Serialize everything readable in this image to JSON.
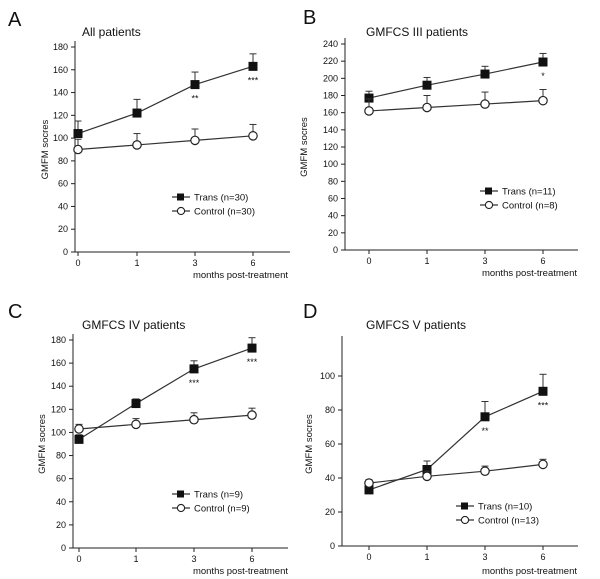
{
  "chart_data": [
    {
      "type": "line",
      "panel_letter": "A",
      "title": "All patients",
      "ylabel": "GMFM socres",
      "xlabel": "months post-treatment",
      "categories": [
        "0",
        "1",
        "3",
        "6"
      ],
      "ylim": [
        0,
        180
      ],
      "yticks": [
        0,
        20,
        40,
        60,
        80,
        100,
        120,
        140,
        160,
        180
      ],
      "grid": false,
      "legend_position": "bottom-right",
      "series": [
        {
          "name": "Trans (n=30)",
          "marker": "filled-square",
          "values": [
            104,
            122,
            147,
            163
          ],
          "errors": [
            11,
            12,
            11,
            11
          ]
        },
        {
          "name": "Control (n=30)",
          "marker": "open-circle",
          "values": [
            90,
            94,
            98,
            102
          ],
          "errors": [
            9,
            10,
            10,
            10
          ]
        }
      ],
      "annotations": [
        {
          "category": "3",
          "text": "**"
        },
        {
          "category": "6",
          "text": "***"
        }
      ]
    },
    {
      "type": "line",
      "panel_letter": "B",
      "title": "GMFCS III patients",
      "ylabel": "GMFM socres",
      "xlabel": "months post-treatment",
      "categories": [
        "0",
        "1",
        "3",
        "6"
      ],
      "ylim": [
        0,
        240
      ],
      "yticks": [
        0,
        20,
        40,
        60,
        80,
        100,
        120,
        140,
        160,
        180,
        200,
        220,
        240
      ],
      "grid": false,
      "legend_position": "bottom-right",
      "series": [
        {
          "name": "Trans (n=11)",
          "marker": "filled-square",
          "values": [
            177,
            192,
            205,
            219
          ],
          "errors": [
            8,
            9,
            9,
            10
          ]
        },
        {
          "name": "Control (n=8)",
          "marker": "open-circle",
          "values": [
            162,
            166,
            170,
            174
          ],
          "errors": [
            14,
            14,
            14,
            13
          ]
        }
      ],
      "annotations": [
        {
          "category": "6",
          "text": "*"
        }
      ]
    },
    {
      "type": "line",
      "panel_letter": "C",
      "title": "GMFCS IV patients",
      "ylabel": "GMFM socres",
      "xlabel": "months post-treatment",
      "categories": [
        "0",
        "1",
        "3",
        "6"
      ],
      "ylim": [
        0,
        180
      ],
      "yticks": [
        0,
        20,
        40,
        60,
        80,
        100,
        120,
        140,
        160,
        180
      ],
      "grid": false,
      "legend_position": "bottom-right",
      "series": [
        {
          "name": "Trans (n=9)",
          "marker": "filled-square",
          "values": [
            94,
            125,
            155,
            173
          ],
          "errors": [
            4,
            4,
            7,
            9
          ]
        },
        {
          "name": "Control (n=9)",
          "marker": "open-circle",
          "values": [
            103,
            107,
            111,
            115
          ],
          "errors": [
            4,
            5,
            6,
            6
          ]
        }
      ],
      "annotations": [
        {
          "category": "3",
          "text": "***"
        },
        {
          "category": "6",
          "text": "***"
        }
      ]
    },
    {
      "type": "line",
      "panel_letter": "D",
      "title": "GMFCS V patients",
      "ylabel": "GMFM socres",
      "xlabel": "months post-treatment",
      "categories": [
        "0",
        "1",
        "3",
        "6"
      ],
      "ylim": [
        0,
        120
      ],
      "yticks": [
        0,
        20,
        40,
        60,
        80,
        100
      ],
      "grid": false,
      "legend_position": "bottom-right",
      "series": [
        {
          "name": "Trans (n=10)",
          "marker": "filled-square",
          "values": [
            33,
            45,
            76,
            91
          ],
          "errors": [
            2,
            5,
            9,
            10
          ]
        },
        {
          "name": "Control (n=13)",
          "marker": "open-circle",
          "values": [
            37,
            41,
            44,
            48
          ],
          "errors": [
            2,
            3,
            3,
            3
          ]
        }
      ],
      "annotations": [
        {
          "category": "3",
          "text": "**"
        },
        {
          "category": "6",
          "text": "***"
        }
      ]
    }
  ]
}
